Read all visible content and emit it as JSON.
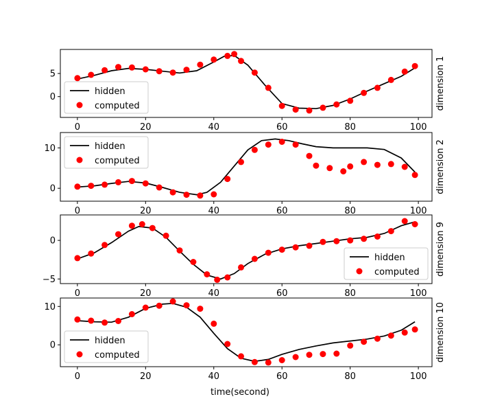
{
  "colors": {
    "hidden": "#000000",
    "computed": "#ff0000",
    "legend_border": "#cccccc"
  },
  "legend": {
    "hidden": "hidden",
    "computed": "computed"
  },
  "chart_data": [
    {
      "type": "line+scatter",
      "ylabel": "dimension 1",
      "xlim": [
        -5,
        104
      ],
      "ylim": [
        -4.5,
        10.2
      ],
      "xticks": [
        0,
        20,
        40,
        60,
        80,
        100
      ],
      "yticks": [
        0,
        5
      ],
      "legend_position": "lower-left",
      "series": [
        {
          "name": "hidden",
          "kind": "line",
          "x": [
            0,
            5,
            10,
            15,
            20,
            25,
            30,
            35,
            40,
            43,
            46,
            50,
            55,
            60,
            65,
            70,
            75,
            80,
            85,
            90,
            95,
            99
          ],
          "y": [
            3.8,
            4.6,
            5.6,
            6.1,
            5.9,
            5.5,
            5.1,
            5.6,
            7.5,
            8.7,
            8.9,
            6.8,
            2.5,
            -1.5,
            -2.5,
            -2.6,
            -1.9,
            -0.5,
            1.2,
            2.8,
            4.4,
            6.2
          ]
        },
        {
          "name": "computed",
          "kind": "scatter",
          "x": [
            0,
            4,
            8,
            12,
            16,
            20,
            24,
            28,
            32,
            36,
            40,
            44,
            46,
            48,
            52,
            56,
            60,
            64,
            68,
            72,
            76,
            80,
            84,
            88,
            92,
            96,
            99
          ],
          "y": [
            4.0,
            4.7,
            5.7,
            6.4,
            6.3,
            5.9,
            5.5,
            5.2,
            5.8,
            6.9,
            8.0,
            8.8,
            9.2,
            7.7,
            5.2,
            1.9,
            -2.0,
            -2.8,
            -3.0,
            -2.4,
            -1.7,
            -0.9,
            0.8,
            1.9,
            3.6,
            5.4,
            6.6
          ]
        }
      ]
    },
    {
      "type": "line+scatter",
      "ylabel": "dimension 2",
      "xlim": [
        -5,
        104
      ],
      "ylim": [
        -3.2,
        13.8
      ],
      "xticks": [
        0,
        20,
        40,
        60,
        80,
        100
      ],
      "yticks": [
        0,
        10
      ],
      "legend_position": "upper-left",
      "series": [
        {
          "name": "hidden",
          "kind": "line",
          "x": [
            0,
            5,
            10,
            15,
            20,
            25,
            30,
            35,
            38,
            42,
            46,
            50,
            54,
            58,
            62,
            66,
            70,
            75,
            80,
            85,
            90,
            95,
            99
          ],
          "y": [
            0.3,
            0.6,
            1.2,
            1.7,
            1.3,
            0.2,
            -1.0,
            -1.6,
            -1.0,
            1.5,
            5.5,
            9.5,
            11.8,
            12.2,
            11.8,
            11.0,
            10.3,
            10.0,
            10.0,
            10.0,
            9.6,
            7.5,
            4.0
          ]
        },
        {
          "name": "computed",
          "kind": "scatter",
          "x": [
            0,
            4,
            8,
            12,
            16,
            20,
            24,
            28,
            32,
            36,
            40,
            44,
            48,
            52,
            56,
            60,
            64,
            68,
            70,
            74,
            78,
            80,
            84,
            88,
            92,
            96,
            99
          ],
          "y": [
            0.4,
            0.6,
            0.9,
            1.5,
            1.8,
            1.2,
            0.2,
            -1.0,
            -1.6,
            -1.8,
            -1.5,
            2.3,
            6.5,
            9.5,
            10.8,
            11.5,
            10.8,
            8.0,
            5.6,
            5.0,
            4.2,
            5.4,
            6.5,
            5.8,
            6.0,
            5.3,
            3.3
          ]
        }
      ]
    },
    {
      "type": "line+scatter",
      "ylabel": "dimension 9",
      "xlim": [
        -5,
        104
      ],
      "ylim": [
        -5.6,
        3.3
      ],
      "xticks": [
        0,
        20,
        40,
        60,
        80,
        100
      ],
      "yticks": [
        -5,
        0
      ],
      "legend_position": "lower-right",
      "series": [
        {
          "name": "hidden",
          "kind": "line",
          "x": [
            0,
            5,
            10,
            15,
            18,
            22,
            26,
            30,
            34,
            38,
            42,
            46,
            50,
            55,
            60,
            65,
            70,
            75,
            80,
            85,
            90,
            95,
            99
          ],
          "y": [
            -2.4,
            -1.6,
            -0.3,
            1.2,
            1.8,
            1.6,
            0.4,
            -1.4,
            -3.1,
            -4.5,
            -5.0,
            -4.3,
            -3.0,
            -1.8,
            -1.1,
            -0.7,
            -0.4,
            -0.1,
            0.2,
            0.4,
            0.9,
            1.9,
            2.4
          ]
        },
        {
          "name": "computed",
          "kind": "scatter",
          "x": [
            0,
            4,
            8,
            12,
            16,
            19,
            22,
            26,
            30,
            34,
            38,
            41,
            44,
            48,
            52,
            56,
            60,
            64,
            68,
            72,
            76,
            80,
            84,
            88,
            92,
            96,
            99
          ],
          "y": [
            -2.3,
            -1.7,
            -0.6,
            0.8,
            1.9,
            2.1,
            1.6,
            0.6,
            -1.3,
            -2.8,
            -4.4,
            -5.1,
            -4.8,
            -3.5,
            -2.4,
            -1.6,
            -1.2,
            -0.9,
            -0.7,
            -0.2,
            -0.1,
            0.0,
            0.2,
            0.5,
            1.2,
            2.5,
            2.1
          ]
        }
      ]
    },
    {
      "type": "line+scatter",
      "ylabel": "dimension 10",
      "xlim": [
        -5,
        104
      ],
      "ylim": [
        -5.7,
        12.2
      ],
      "xticks": [
        0,
        20,
        40,
        60,
        80,
        100
      ],
      "yticks": [
        0,
        10
      ],
      "legend_position": "lower-left",
      "series": [
        {
          "name": "hidden",
          "kind": "line",
          "x": [
            0,
            5,
            10,
            15,
            20,
            25,
            28,
            32,
            36,
            40,
            44,
            48,
            52,
            56,
            60,
            65,
            70,
            75,
            80,
            85,
            90,
            95,
            99
          ],
          "y": [
            6.3,
            6.0,
            5.9,
            7.2,
            9.5,
            10.6,
            10.8,
            9.8,
            7.2,
            3.0,
            -1.0,
            -3.5,
            -4.3,
            -3.8,
            -2.5,
            -1.2,
            -0.3,
            0.5,
            1.0,
            1.5,
            2.3,
            3.8,
            6.0
          ]
        },
        {
          "name": "computed",
          "kind": "scatter",
          "x": [
            0,
            4,
            8,
            12,
            16,
            20,
            24,
            28,
            32,
            36,
            40,
            44,
            48,
            52,
            56,
            60,
            64,
            68,
            72,
            76,
            80,
            84,
            88,
            92,
            96,
            99
          ],
          "y": [
            6.6,
            6.3,
            5.8,
            6.2,
            8.0,
            9.7,
            10.2,
            11.3,
            10.3,
            9.4,
            5.5,
            0.2,
            -3.0,
            -4.5,
            -4.6,
            -4.0,
            -3.2,
            -2.6,
            -2.4,
            -2.3,
            -0.2,
            0.8,
            1.6,
            2.4,
            3.2,
            4.0
          ]
        }
      ]
    }
  ],
  "xlabel": "time(second)"
}
